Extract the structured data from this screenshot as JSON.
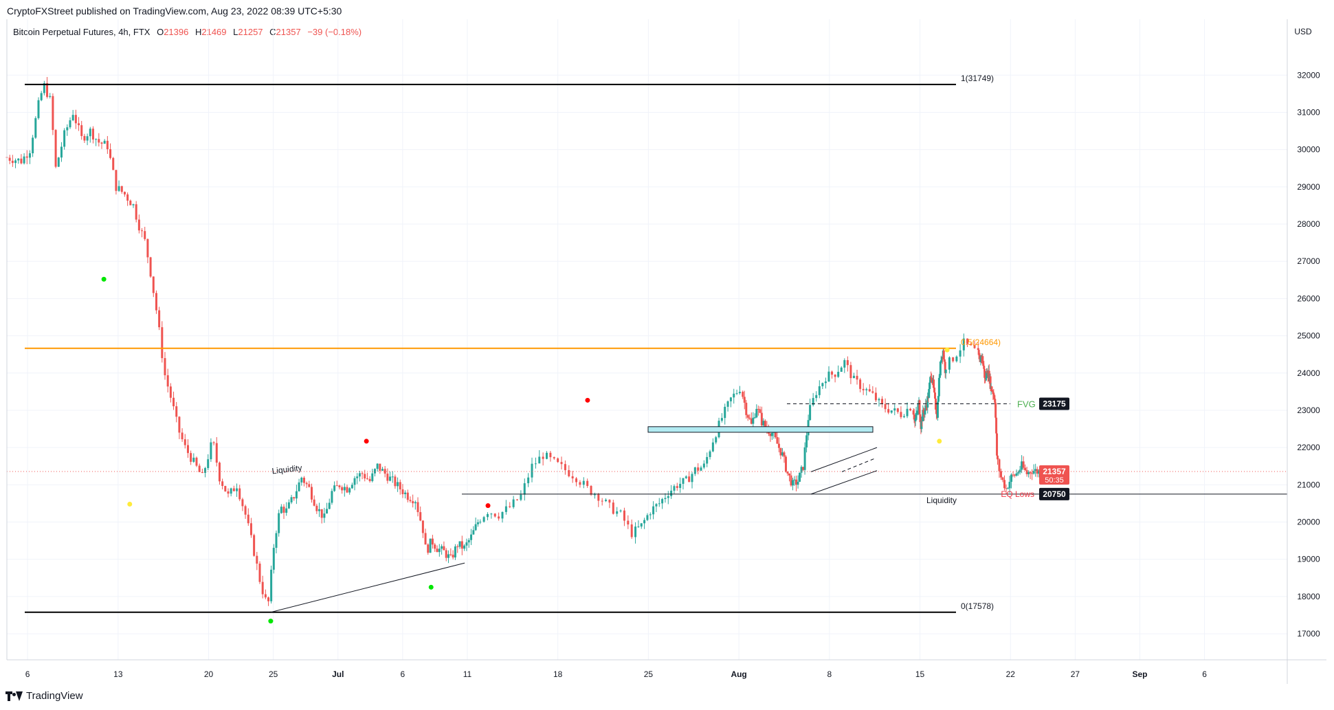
{
  "header": {
    "publisher": "CryptoFXStreet published on TradingView.com, Aug 23, 2022 08:39 UTC+5:30",
    "symbol": "Bitcoin Perpetual Futures, 4h, FTX",
    "open_label": "O",
    "open_value": "21396",
    "high_label": "H",
    "high_value": "21469",
    "low_label": "L",
    "low_value": "21257",
    "close_label": "C",
    "close_value": "21357",
    "change": "−39 (−0.18%)"
  },
  "footer": {
    "brand": "TradingView"
  },
  "chart_data": {
    "type": "candlestick",
    "currency_label": "USD",
    "ylim": [
      16300,
      33500
    ],
    "y_ticks": [
      17000,
      18000,
      19000,
      20000,
      21000,
      22000,
      23000,
      24000,
      25000,
      26000,
      27000,
      28000,
      29000,
      30000,
      31000,
      32000
    ],
    "x_tick_labels": [
      {
        "label": "6",
        "day": 0
      },
      {
        "label": "13",
        "day": 7
      },
      {
        "label": "20",
        "day": 14
      },
      {
        "label": "25",
        "day": 19
      },
      {
        "label": "Jul",
        "day": 24
      },
      {
        "label": "6",
        "day": 29
      },
      {
        "label": "11",
        "day": 34
      },
      {
        "label": "18",
        "day": 41
      },
      {
        "label": "25",
        "day": 48
      },
      {
        "label": "Aug",
        "day": 55
      },
      {
        "label": "8",
        "day": 62
      },
      {
        "label": "15",
        "day": 69
      },
      {
        "label": "22",
        "day": 76
      },
      {
        "label": "27",
        "day": 81
      },
      {
        "label": "Sep",
        "day": 86
      },
      {
        "label": "6",
        "day": 91
      }
    ],
    "x_range_days": [
      -1.6,
      97.4
    ],
    "price_path": [
      [
        -1.5,
        29800
      ],
      [
        -0.5,
        29700
      ],
      [
        0,
        30000
      ],
      [
        0.5,
        31200
      ],
      [
        0.8,
        31749
      ],
      [
        1.2,
        31300
      ],
      [
        1.5,
        29500
      ],
      [
        2,
        30400
      ],
      [
        2.5,
        31000
      ],
      [
        3,
        30300
      ],
      [
        3.5,
        30500
      ],
      [
        4,
        30200
      ],
      [
        4.5,
        30100
      ],
      [
        5,
        29000
      ],
      [
        5.5,
        28800
      ],
      [
        6,
        28500
      ],
      [
        6.3,
        28000
      ],
      [
        6.7,
        27500
      ],
      [
        7,
        26700
      ],
      [
        7.4,
        25500
      ],
      [
        7.8,
        24000
      ],
      [
        8.2,
        23300
      ],
      [
        8.6,
        22500
      ],
      [
        9,
        22000
      ],
      [
        9.5,
        21600
      ],
      [
        10,
        21200
      ],
      [
        10.3,
        21700
      ],
      [
        10.6,
        22200
      ],
      [
        11,
        21200
      ],
      [
        11.5,
        20700
      ],
      [
        12,
        21000
      ],
      [
        12.5,
        20200
      ],
      [
        13,
        19200
      ],
      [
        13.4,
        18300
      ],
      [
        13.8,
        17700
      ],
      [
        14.2,
        19500
      ],
      [
        14.6,
        20400
      ],
      [
        15,
        20300
      ],
      [
        15.5,
        20700
      ],
      [
        16,
        21200
      ],
      [
        16.5,
        20900
      ],
      [
        17,
        20400
      ],
      [
        17.5,
        20100
      ],
      [
        18,
        20800
      ],
      [
        18.5,
        21000
      ],
      [
        19,
        20900
      ],
      [
        19.5,
        21200
      ],
      [
        20,
        21300
      ],
      [
        20.5,
        21100
      ],
      [
        21,
        21500
      ],
      [
        21.5,
        21300
      ],
      [
        22,
        21100
      ],
      [
        22.5,
        20900
      ],
      [
        23,
        20700
      ],
      [
        23.5,
        20600
      ],
      [
        24,
        19800
      ],
      [
        24.2,
        19200
      ],
      [
        24.6,
        19500
      ],
      [
        25,
        19300
      ],
      [
        25.5,
        19200
      ],
      [
        26,
        19000
      ],
      [
        26.5,
        19400
      ],
      [
        27,
        19300
      ],
      [
        27.5,
        19600
      ],
      [
        28,
        20000
      ],
      [
        28.5,
        20300
      ],
      [
        29,
        20200
      ],
      [
        29.5,
        20400
      ],
      [
        30,
        20700
      ],
      [
        30.5,
        21500
      ],
      [
        31,
        21800
      ],
      [
        31.5,
        21600
      ],
      [
        32,
        21400
      ],
      [
        32.5,
        21200
      ],
      [
        33,
        20900
      ],
      [
        33.5,
        20700
      ],
      [
        34,
        20400
      ],
      [
        34.5,
        20200
      ],
      [
        35,
        19700
      ],
      [
        35.5,
        19900
      ],
      [
        36,
        20300
      ],
      [
        36.5,
        20500
      ],
      [
        37,
        20800
      ],
      [
        37.5,
        21000
      ],
      [
        38,
        21100
      ],
      [
        38.5,
        21400
      ],
      [
        39,
        21500
      ],
      [
        39.5,
        22200
      ],
      [
        40,
        22800
      ],
      [
        40.5,
        23300
      ],
      [
        41,
        23600
      ],
      [
        41.5,
        23000
      ],
      [
        42,
        22600
      ],
      [
        42.5,
        23100
      ],
      [
        43,
        22700
      ],
      [
        43.5,
        22500
      ],
      [
        44,
        22400
      ],
      [
        44.5,
        22100
      ],
      [
        45,
        21800
      ],
      [
        45.5,
        21300
      ],
      [
        46,
        21000
      ],
      [
        46.5,
        21100
      ],
      [
        47,
        21500
      ],
      [
        47.5,
        22800
      ],
      [
        48,
        23500
      ],
      [
        48.5,
        23900
      ],
      [
        49,
        24000
      ],
      [
        49.5,
        24300
      ],
      [
        50,
        23800
      ],
      [
        50.5,
        23600
      ],
      [
        51,
        23400
      ],
      [
        51.5,
        23100
      ],
      [
        52,
        23000
      ],
      [
        52.5,
        22900
      ],
      [
        53,
        23100
      ],
      [
        53.5,
        22700
      ],
      [
        54,
        22900
      ],
      [
        54.5,
        23200
      ],
      [
        55,
        22600
      ],
      [
        55.5,
        22900
      ],
      [
        56,
        23000
      ],
      [
        56.5,
        23200
      ],
      [
        57,
        23500
      ],
      [
        57.5,
        24000
      ],
      [
        58,
        23700
      ],
      [
        58.5,
        23200
      ],
      [
        59,
        22900
      ],
      [
        59.5,
        23800
      ],
      [
        60,
        24400
      ],
      [
        60.5,
        24600
      ],
      [
        61,
        24100
      ],
      [
        61.5,
        24400
      ],
      [
        62,
        24800
      ],
      [
        62.5,
        24600
      ],
      [
        63,
        24300
      ],
      [
        63.5,
        24500
      ],
      [
        64,
        24200
      ],
      [
        64.5,
        23800
      ],
      [
        65,
        24100
      ],
      [
        65.5,
        23900
      ],
      [
        66,
        23600
      ],
      [
        66.5,
        23500
      ],
      [
        67,
        23300
      ],
      [
        67.5,
        21800
      ],
      [
        68,
        21200
      ],
      [
        68.5,
        20900
      ],
      [
        69,
        21200
      ],
      [
        69.5,
        21300
      ],
      [
        70,
        21500
      ],
      [
        70.5,
        21300
      ],
      [
        71,
        21400
      ],
      [
        71.5,
        21357
      ]
    ],
    "candle_day_map": [
      [
        -1.5,
        -1.6
      ],
      [
        13.8,
        18.8
      ],
      [
        24.2,
        31.0
      ],
      [
        28.0,
        35.0
      ],
      [
        35.0,
        47.0
      ],
      [
        41.0,
        55.3
      ],
      [
        47.5,
        60.5
      ],
      [
        53.0,
        68.5
      ],
      [
        61.0,
        71.0
      ],
      [
        62.5,
        73.5
      ],
      [
        67.5,
        75.0
      ],
      [
        71.5,
        78.2
      ]
    ],
    "levels": [
      {
        "label": "1(31749)",
        "value": 31749,
        "color": "#000000"
      },
      {
        "label": "0.5(24664)",
        "value": 24664,
        "color": "#ff9800"
      },
      {
        "label": "0(17578)",
        "value": 17578,
        "color": "#000000"
      }
    ],
    "annotations": {
      "fvg_label": "FVG",
      "fvg_value": 23175,
      "eq_lows_label": "EQ Lows",
      "eq_lows_value": 20750,
      "liquidity_right_label": "Liquidity",
      "liquidity_left_label": "Liquidity",
      "last_price": "21357",
      "countdown": "50:35"
    },
    "colors": {
      "up": "#26a69a",
      "down": "#ef5350",
      "fib_mid": "#ff9800",
      "fvg": "#4caf50",
      "eq": "#f23645"
    }
  }
}
